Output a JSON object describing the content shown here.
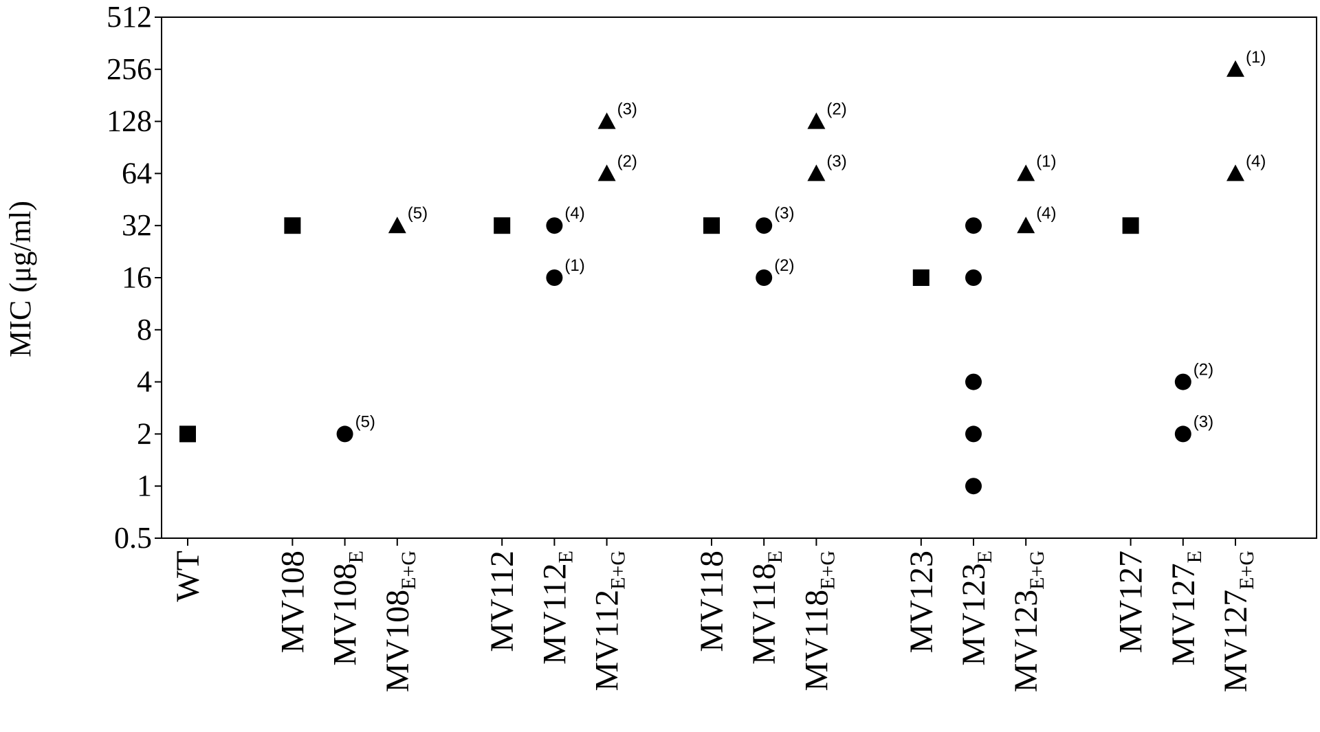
{
  "chart_data": {
    "type": "scatter",
    "ylabel": "MIC (μg/ml)",
    "xlabel": "",
    "title": "",
    "yscale": "log2",
    "ylim": [
      0.5,
      512
    ],
    "yticks": [
      "0.5",
      "1",
      "2",
      "4",
      "8",
      "16",
      "32",
      "64",
      "128",
      "256",
      "512"
    ],
    "grid": false,
    "legend": "none",
    "marker_color": "#000000",
    "categories": [
      {
        "label": "WT",
        "main": "WT",
        "sub": "",
        "gap_before": 0
      },
      {
        "label": "MV108",
        "main": "MV108",
        "sub": "",
        "gap_before": 1
      },
      {
        "label": "MV108E",
        "main": "MV108",
        "sub": "E",
        "gap_before": 0
      },
      {
        "label": "MV108E+G",
        "main": "MV108",
        "sub": "E+G",
        "gap_before": 0
      },
      {
        "label": "MV112",
        "main": "MV112",
        "sub": "",
        "gap_before": 1
      },
      {
        "label": "MV112E",
        "main": "MV112",
        "sub": "E",
        "gap_before": 0
      },
      {
        "label": "MV112E+G",
        "main": "MV112",
        "sub": "E+G",
        "gap_before": 0
      },
      {
        "label": "MV118",
        "main": "MV118",
        "sub": "",
        "gap_before": 1
      },
      {
        "label": "MV118E",
        "main": "MV118",
        "sub": "E",
        "gap_before": 0
      },
      {
        "label": "MV118E+G",
        "main": "MV118",
        "sub": "E+G",
        "gap_before": 0
      },
      {
        "label": "MV123",
        "main": "MV123",
        "sub": "",
        "gap_before": 1
      },
      {
        "label": "MV123E",
        "main": "MV123",
        "sub": "E",
        "gap_before": 0
      },
      {
        "label": "MV123E+G",
        "main": "MV123",
        "sub": "E+G",
        "gap_before": 0
      },
      {
        "label": "MV127",
        "main": "MV127",
        "sub": "",
        "gap_before": 1
      },
      {
        "label": "MV127E",
        "main": "MV127",
        "sub": "E",
        "gap_before": 0
      },
      {
        "label": "MV127E+G",
        "main": "MV127",
        "sub": "E+G",
        "gap_before": 0
      }
    ],
    "points": [
      {
        "category": "WT",
        "y": 2,
        "marker": "square",
        "annotation": ""
      },
      {
        "category": "MV108",
        "y": 32,
        "marker": "square",
        "annotation": ""
      },
      {
        "category": "MV108E",
        "y": 2,
        "marker": "circle",
        "annotation": "(5)"
      },
      {
        "category": "MV108E+G",
        "y": 32,
        "marker": "triangle",
        "annotation": "(5)"
      },
      {
        "category": "MV112",
        "y": 32,
        "marker": "square",
        "annotation": ""
      },
      {
        "category": "MV112E",
        "y": 32,
        "marker": "circle",
        "annotation": "(4)"
      },
      {
        "category": "MV112E",
        "y": 16,
        "marker": "circle",
        "annotation": "(1)"
      },
      {
        "category": "MV112E+G",
        "y": 128,
        "marker": "triangle",
        "annotation": "(3)"
      },
      {
        "category": "MV112E+G",
        "y": 64,
        "marker": "triangle",
        "annotation": "(2)"
      },
      {
        "category": "MV118",
        "y": 32,
        "marker": "square",
        "annotation": ""
      },
      {
        "category": "MV118E",
        "y": 32,
        "marker": "circle",
        "annotation": "(3)"
      },
      {
        "category": "MV118E",
        "y": 16,
        "marker": "circle",
        "annotation": "(2)"
      },
      {
        "category": "MV118E+G",
        "y": 128,
        "marker": "triangle",
        "annotation": "(2)"
      },
      {
        "category": "MV118E+G",
        "y": 64,
        "marker": "triangle",
        "annotation": "(3)"
      },
      {
        "category": "MV123",
        "y": 16,
        "marker": "square",
        "annotation": ""
      },
      {
        "category": "MV123E",
        "y": 32,
        "marker": "circle",
        "annotation": ""
      },
      {
        "category": "MV123E",
        "y": 16,
        "marker": "circle",
        "annotation": ""
      },
      {
        "category": "MV123E",
        "y": 4,
        "marker": "circle",
        "annotation": ""
      },
      {
        "category": "MV123E",
        "y": 2,
        "marker": "circle",
        "annotation": ""
      },
      {
        "category": "MV123E",
        "y": 1,
        "marker": "circle",
        "annotation": ""
      },
      {
        "category": "MV123E+G",
        "y": 64,
        "marker": "triangle",
        "annotation": "(1)"
      },
      {
        "category": "MV123E+G",
        "y": 32,
        "marker": "triangle",
        "annotation": "(4)"
      },
      {
        "category": "MV127",
        "y": 32,
        "marker": "square",
        "annotation": ""
      },
      {
        "category": "MV127E",
        "y": 4,
        "marker": "circle",
        "annotation": "(2)"
      },
      {
        "category": "MV127E",
        "y": 2,
        "marker": "circle",
        "annotation": "(3)"
      },
      {
        "category": "MV127E+G",
        "y": 256,
        "marker": "triangle",
        "annotation": "(1)"
      },
      {
        "category": "MV127E+G",
        "y": 64,
        "marker": "triangle",
        "annotation": "(4)"
      }
    ]
  }
}
